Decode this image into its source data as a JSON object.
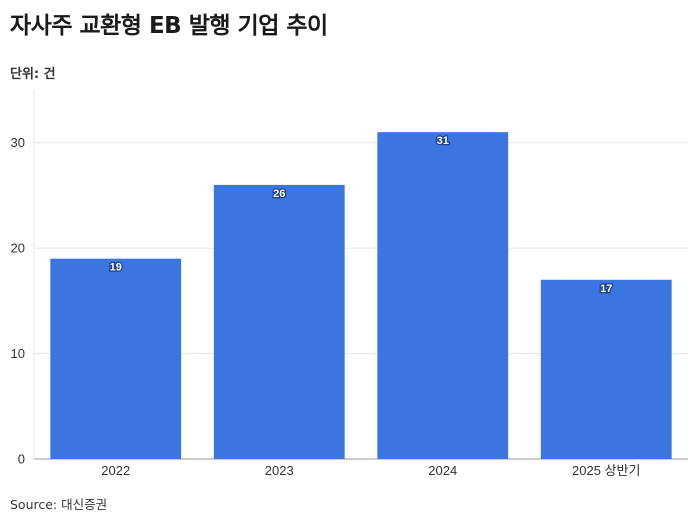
{
  "title": "자사주 교환형 EB 발행 기업 추이",
  "unit_label": "단위: 건",
  "source": "Source: 대신증권",
  "chart_data": {
    "type": "bar",
    "categories": [
      "2022",
      "2023",
      "2024",
      "2025 상반기"
    ],
    "values": [
      19,
      26,
      31,
      17
    ],
    "title": "자사주 교환형 EB 발행 기업 추이",
    "xlabel": "",
    "ylabel": "",
    "ylim": [
      0,
      35
    ],
    "yticks": [
      0,
      10,
      20,
      30
    ],
    "grid": true,
    "bar_color": "#3b76e0",
    "data_labels": true
  }
}
